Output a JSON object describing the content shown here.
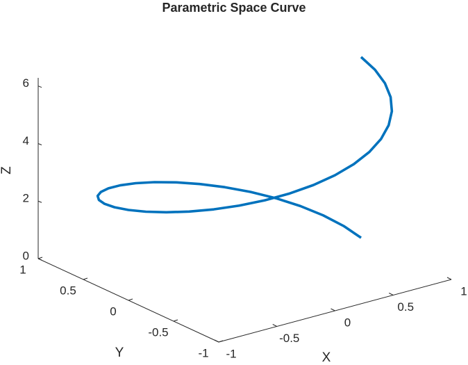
{
  "chart_data": {
    "type": "line3d",
    "title": "Parametric Space Curve",
    "xlabel": "X",
    "ylabel": "Y",
    "zlabel": "Z",
    "xlim": [
      -1,
      1
    ],
    "ylim": [
      -1,
      1
    ],
    "zlim": [
      0,
      6.2832
    ],
    "xticks": [
      -1,
      -0.5,
      0,
      0.5,
      1
    ],
    "yticks": [
      -1,
      -0.5,
      0,
      0.5,
      1
    ],
    "zticks": [
      0,
      2,
      4,
      6
    ],
    "series": [
      {
        "color": "#0072BD",
        "x": [
          1,
          0.9848,
          0.9397,
          0.866,
          0.766,
          0.6428,
          0.5,
          0.342,
          0.1736,
          0,
          -0.1736,
          -0.342,
          -0.5,
          -0.6428,
          -0.766,
          -0.866,
          -0.9397,
          -0.9848,
          -1,
          -0.9848,
          -0.9397,
          -0.866,
          -0.766,
          -0.6428,
          -0.5,
          -0.342,
          -0.1736,
          0,
          0.1736,
          0.342,
          0.5,
          0.6428,
          0.766,
          0.866,
          0.9397,
          0.9848,
          1
        ],
        "y": [
          0,
          0.1736,
          0.342,
          0.5,
          0.6428,
          0.766,
          0.866,
          0.9397,
          0.9848,
          1,
          0.9848,
          0.9397,
          0.866,
          0.766,
          0.6428,
          0.5,
          0.342,
          0.1736,
          0,
          -0.1736,
          -0.342,
          -0.5,
          -0.6428,
          -0.766,
          -0.866,
          -0.9397,
          -0.9848,
          -1,
          -0.9848,
          -0.9397,
          -0.866,
          -0.766,
          -0.6428,
          -0.5,
          -0.342,
          -0.1736,
          0
        ],
        "z": [
          0,
          0.1745,
          0.3491,
          0.5236,
          0.6981,
          0.8727,
          1.0472,
          1.2217,
          1.3963,
          1.5708,
          1.7453,
          1.9199,
          2.0944,
          2.2689,
          2.4435,
          2.618,
          2.7925,
          2.9671,
          3.1416,
          3.3161,
          3.4907,
          3.6652,
          3.8397,
          4.0143,
          4.1888,
          4.3633,
          4.5379,
          4.7124,
          4.8869,
          5.0615,
          5.236,
          5.4105,
          5.5851,
          5.7596,
          5.9341,
          6.1087,
          6.2832
        ]
      }
    ]
  }
}
